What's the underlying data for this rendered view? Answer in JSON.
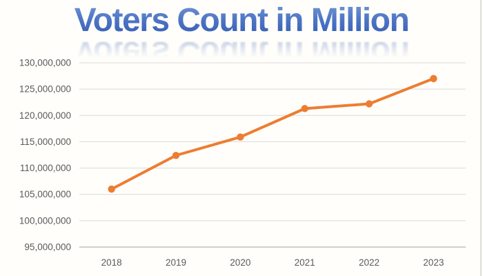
{
  "chart_data": {
    "type": "line",
    "title": "Voters Count in Million",
    "categories": [
      "2018",
      "2019",
      "2020",
      "2021",
      "2022",
      "2023"
    ],
    "values": [
      106000000,
      112400000,
      115900000,
      121300000,
      122200000,
      127000000
    ],
    "xlabel": "",
    "ylabel": "",
    "ylim": [
      95000000,
      130000000
    ],
    "yticks": [
      {
        "value": 95000000,
        "label": "95,000,000"
      },
      {
        "value": 100000000,
        "label": "100,000,000"
      },
      {
        "value": 105000000,
        "label": "105,000,000"
      },
      {
        "value": 110000000,
        "label": "110,000,000"
      },
      {
        "value": 115000000,
        "label": "115,000,000"
      },
      {
        "value": 120000000,
        "label": "120,000,000"
      },
      {
        "value": 125000000,
        "label": "125,000,000"
      },
      {
        "value": 130000000,
        "label": "130,000,000"
      }
    ],
    "grid": "horizontal",
    "legend": "none",
    "marker": "circle"
  },
  "colors": {
    "line": "#ED7D31",
    "gridline": "#D9D9D9",
    "axis_line": "#BFBFBF",
    "tick_label": "#595959",
    "title_gradient_top": "#7B9AD8",
    "title_gradient_bottom": "#2D57B0",
    "background": "#FFFEFA",
    "frame_border": "#DCDCDC"
  }
}
